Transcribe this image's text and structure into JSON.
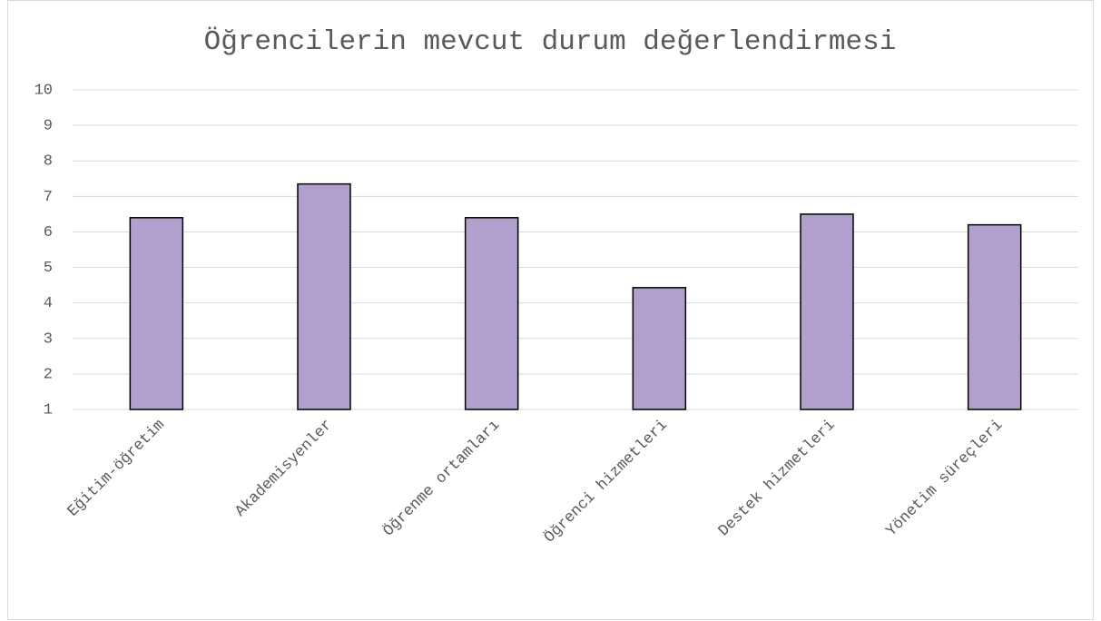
{
  "chart_data": {
    "type": "bar",
    "title": "Öğrencilerin mevcut durum değerlendirmesi",
    "categories": [
      "Eğitim-öğretim",
      "Akademisyenler",
      "Öğrenme ortamları",
      "Öğrenci hizmetleri",
      "Destek hizmetleri",
      "Yönetim süreçleri"
    ],
    "values": [
      6.4,
      7.35,
      6.4,
      4.43,
      6.5,
      6.2
    ],
    "color": "#b1a0cd",
    "ylim": [
      1,
      10
    ],
    "yticks": [
      1,
      2,
      3,
      4,
      5,
      6,
      7,
      8,
      9,
      10
    ],
    "grid": true
  }
}
